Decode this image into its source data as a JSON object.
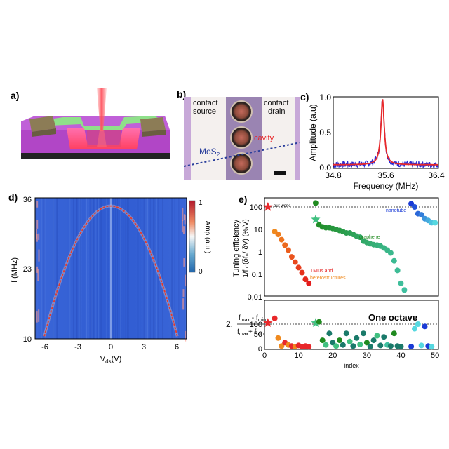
{
  "panels": {
    "a": {
      "label": "a)"
    },
    "b": {
      "label": "b)",
      "contact_source": [
        "contact",
        "source"
      ],
      "contact_drain": [
        "contact",
        "drain"
      ],
      "cavity": "cavity",
      "mos2": "MoS",
      "mos2_sub": "2"
    },
    "c": {
      "label": "c)"
    },
    "d": {
      "label": "d)"
    },
    "e": {
      "label": "e)"
    }
  },
  "colors": {
    "spectrum_blue": "#2b2bd6",
    "fit_red": "#e8282a",
    "heatmap_bg": "#2f5bd1",
    "dispersion": "#e63a2a"
  },
  "chart_data": [
    {
      "id": "c",
      "type": "line",
      "xlabel": "Frequency (MHz)",
      "ylabel": "Amplitude (a.u)",
      "xlim": [
        34.8,
        36.4
      ],
      "ylim": [
        0.0,
        1.0
      ],
      "x_ticks": [
        "34.8",
        "35.6",
        "36.4"
      ],
      "y_ticks": [
        "0.0",
        "0.5",
        "1.0"
      ],
      "series": [
        {
          "style": "noisy data",
          "color": "#2b2bd6",
          "peak_x": 35.55,
          "peak_y": 1.0,
          "baseline": 0.05
        },
        {
          "style": "lorentzian fit",
          "color": "#e8282a",
          "peak_x": 35.55,
          "peak_y": 0.92
        }
      ]
    },
    {
      "id": "d",
      "type": "heatmap",
      "xlabel": "V",
      "xlabel_sub": "ds",
      "xlabel_unit": "(V)",
      "ylabel": "f (MHz)",
      "x_ticks": [
        "-6",
        "-3",
        "0",
        "3",
        "6"
      ],
      "y_ticks": [
        "36",
        "23",
        "10"
      ],
      "xlim": [
        -7,
        7
      ],
      "ylim": [
        10,
        36
      ],
      "colorbar": {
        "label": "Amp (a.u.)",
        "ticks": [
          "1",
          "0"
        ]
      },
      "dispersion": {
        "vertex_v": 0,
        "vertex_f": 34.5,
        "zero_crossing_v": 6.2,
        "zero_crossing_f": 10
      }
    },
    {
      "id": "e_top",
      "type": "scatter",
      "ylabel_lines": [
        "Tuning efficiency",
        "1/f₀·(δf₀/ δV) (%/V)"
      ],
      "yscale": "log",
      "y_ticks": [
        "100",
        "10",
        "1",
        "0,1",
        "0,01"
      ],
      "ylim": [
        0.01,
        200
      ],
      "reference_line": 100,
      "annotations": [
        "our work",
        "nanotube",
        "graphene",
        "TMDs and",
        "heterostructures"
      ],
      "series": [
        {
          "name": "our work",
          "marker": "star",
          "color": "#e8282a",
          "points": [
            [
              1,
              100
            ]
          ]
        },
        {
          "name": "TMDs and heterostructures",
          "color_range": [
            "#f08a1e",
            "#e41c1c"
          ],
          "points": [
            [
              3,
              8
            ],
            [
              4,
              6
            ],
            [
              5,
              3.5
            ],
            [
              6,
              2
            ],
            [
              7,
              1.2
            ],
            [
              8,
              0.6
            ],
            [
              9,
              0.35
            ],
            [
              10,
              0.2
            ],
            [
              11,
              0.12
            ],
            [
              12,
              0.06
            ],
            [
              13,
              0.04
            ]
          ]
        },
        {
          "name": "graphene",
          "marker_star_at": 15,
          "color_range": [
            "#1f8a1f",
            "#40c0a0"
          ],
          "points": [
            [
              15,
              150
            ],
            [
              15,
              28
            ],
            [
              16,
              16
            ],
            [
              17,
              13
            ],
            [
              18,
              12
            ],
            [
              19,
              12
            ],
            [
              20,
              11
            ],
            [
              21,
              10
            ],
            [
              22,
              9
            ],
            [
              23,
              8
            ],
            [
              24,
              7
            ],
            [
              25,
              7
            ],
            [
              26,
              6
            ],
            [
              27,
              5
            ],
            [
              28,
              4.5
            ],
            [
              29,
              3
            ],
            [
              30,
              2.6
            ],
            [
              31,
              2.3
            ],
            [
              32,
              2.1
            ],
            [
              33,
              2
            ],
            [
              34,
              1.8
            ],
            [
              35,
              1.5
            ],
            [
              36,
              1.2
            ],
            [
              37,
              0.9
            ],
            [
              38,
              0.4
            ],
            [
              39,
              0.15
            ],
            [
              40,
              0.04
            ],
            [
              41,
              0.02
            ]
          ]
        },
        {
          "name": "nanotube",
          "color_range": [
            "#1a3bd6",
            "#56d8e0"
          ],
          "points": [
            [
              43,
              140
            ],
            [
              44,
              100
            ],
            [
              45,
              50
            ],
            [
              46,
              45
            ],
            [
              47,
              30
            ],
            [
              48,
              25
            ],
            [
              49,
              20
            ],
            [
              50,
              20
            ]
          ]
        }
      ]
    },
    {
      "id": "e_bottom",
      "type": "scatter",
      "ylabel_parts": [
        "2.",
        "f",
        "max",
        " - f",
        "min",
        "f",
        "max",
        "+ f",
        "min"
      ],
      "y_ticks": [
        "100",
        "50",
        "0"
      ],
      "ylim": [
        0,
        130
      ],
      "reference_line": 100,
      "reference_label": "One octave",
      "xlabel": "index",
      "x_ticks": [
        "0",
        "10",
        "20",
        "30",
        "40",
        "50"
      ],
      "xlim": [
        0,
        51
      ],
      "points": [
        [
          1,
          105,
          "#e8282a",
          "star"
        ],
        [
          3,
          125,
          "#e8282a"
        ],
        [
          4,
          40,
          "#f08a1e"
        ],
        [
          5,
          5,
          "#f08a1e"
        ],
        [
          6,
          20,
          "#e8282a"
        ],
        [
          7,
          10,
          "#f08a1e"
        ],
        [
          8,
          5,
          "#e8282a"
        ],
        [
          9,
          3,
          "#f08a1e"
        ],
        [
          10,
          8,
          "#e8282a"
        ],
        [
          11,
          3,
          "#e8282a"
        ],
        [
          12,
          5,
          "#e8282a"
        ],
        [
          13,
          2,
          "#e8282a"
        ],
        [
          15,
          105,
          "#40c080",
          "star"
        ],
        [
          16,
          110,
          "#1f8a1f"
        ],
        [
          17,
          30,
          "#1f8a1f"
        ],
        [
          18,
          10,
          "#40c080"
        ],
        [
          19,
          60,
          "#1a7a6a"
        ],
        [
          20,
          20,
          "#1a7a6a"
        ],
        [
          21,
          5,
          "#40c080"
        ],
        [
          22,
          30,
          "#1f8a1f"
        ],
        [
          23,
          10,
          "#1a7a6a"
        ],
        [
          24,
          60,
          "#1a7a6a"
        ],
        [
          25,
          25,
          "#40c080"
        ],
        [
          26,
          5,
          "#1a7a6a"
        ],
        [
          27,
          40,
          "#1a7a6a"
        ],
        [
          28,
          12,
          "#40c080"
        ],
        [
          29,
          60,
          "#1a7a6a"
        ],
        [
          30,
          20,
          "#1f8a1f"
        ],
        [
          31,
          3,
          "#1a7a6a"
        ],
        [
          32,
          30,
          "#1a7a6a"
        ],
        [
          33,
          50,
          "#40c080"
        ],
        [
          34,
          8,
          "#1a7a6a"
        ],
        [
          35,
          45,
          "#1a7a6a"
        ],
        [
          36,
          10,
          "#40c0a0"
        ],
        [
          37,
          5,
          "#1a7a6a"
        ],
        [
          38,
          60,
          "#1f8a1f"
        ],
        [
          39,
          5,
          "#1a7a6a"
        ],
        [
          40,
          3,
          "#1a7a6a"
        ],
        [
          43,
          3,
          "#1a3bd6"
        ],
        [
          44,
          80,
          "#56d8e0"
        ],
        [
          45,
          100,
          "#56d8e0"
        ],
        [
          46,
          8,
          "#56d8e0"
        ],
        [
          47,
          90,
          "#1a3bd6"
        ],
        [
          48,
          5,
          "#1a3bd6"
        ],
        [
          49,
          2,
          "#56d8e0"
        ]
      ]
    }
  ]
}
